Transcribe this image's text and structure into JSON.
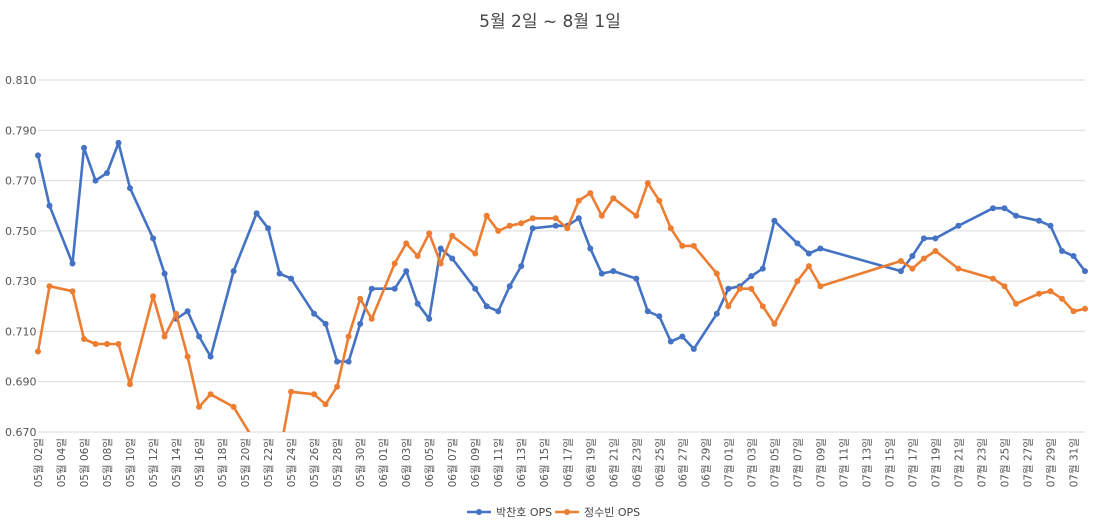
{
  "chart_data": {
    "type": "line",
    "title": "5월 2일 ~ 8월 1일",
    "xlabel": "",
    "ylabel": "",
    "ylim": [
      0.67,
      0.81
    ],
    "yticks": [
      "0.670",
      "0.690",
      "0.710",
      "0.730",
      "0.750",
      "0.770",
      "0.790",
      "0.810"
    ],
    "grid": true,
    "legend_position": "bottom",
    "x_tick_labels": [
      "05월 02일",
      "05월 04일",
      "05월 06일",
      "05월 08일",
      "05월 10일",
      "05월 12일",
      "05월 14일",
      "05월 16일",
      "05월 18일",
      "05월 20일",
      "05월 22일",
      "05월 24일",
      "05월 26일",
      "05월 28일",
      "05월 30일",
      "06월 01일",
      "06월 03일",
      "06월 05일",
      "06월 07일",
      "06월 09일",
      "06월 11일",
      "06월 13일",
      "06월 15일",
      "06월 17일",
      "06월 19일",
      "06월 21일",
      "06월 23일",
      "06월 25일",
      "06월 27일",
      "06월 29일",
      "07월 01일",
      "07월 03일",
      "07월 05일",
      "07월 07일",
      "07월 09일",
      "07월 11일",
      "07월 13일",
      "07월 15일",
      "07월 17일",
      "07월 19일",
      "07월 21일",
      "07월 23일",
      "07월 25일",
      "07월 27일",
      "07월 29일",
      "07월 31일"
    ],
    "series": [
      {
        "name": "박찬호 OPS",
        "color": "#4472C4",
        "points": [
          [
            0,
            0.78
          ],
          [
            1,
            0.76
          ],
          [
            3,
            0.737
          ],
          [
            4,
            0.783
          ],
          [
            5,
            0.77
          ],
          [
            6,
            0.773
          ],
          [
            7,
            0.785
          ],
          [
            8,
            0.767
          ],
          [
            10,
            0.747
          ],
          [
            11,
            0.733
          ],
          [
            12,
            0.715
          ],
          [
            13,
            0.718
          ],
          [
            14,
            0.708
          ],
          [
            15,
            0.7
          ],
          [
            17,
            0.734
          ],
          [
            19,
            0.757
          ],
          [
            20,
            0.751
          ],
          [
            21,
            0.733
          ],
          [
            22,
            0.731
          ],
          [
            24,
            0.717
          ],
          [
            25,
            0.713
          ],
          [
            26,
            0.698
          ],
          [
            27,
            0.698
          ],
          [
            28,
            0.713
          ],
          [
            29,
            0.727
          ],
          [
            31,
            0.727
          ],
          [
            32,
            0.734
          ],
          [
            33,
            0.721
          ],
          [
            34,
            0.715
          ],
          [
            35,
            0.743
          ],
          [
            36,
            0.739
          ],
          [
            38,
            0.727
          ],
          [
            39,
            0.72
          ],
          [
            40,
            0.718
          ],
          [
            41,
            0.728
          ],
          [
            42,
            0.736
          ],
          [
            43,
            0.751
          ],
          [
            45,
            0.752
          ],
          [
            46,
            0.752
          ],
          [
            47,
            0.755
          ],
          [
            48,
            0.743
          ],
          [
            49,
            0.733
          ],
          [
            50,
            0.734
          ],
          [
            52,
            0.731
          ],
          [
            53,
            0.718
          ],
          [
            54,
            0.716
          ],
          [
            55,
            0.706
          ],
          [
            56,
            0.708
          ],
          [
            57,
            0.703
          ],
          [
            59,
            0.717
          ],
          [
            60,
            0.727
          ],
          [
            61,
            0.728
          ],
          [
            62,
            0.732
          ],
          [
            63,
            0.735
          ],
          [
            64,
            0.754
          ],
          [
            66,
            0.745
          ],
          [
            67,
            0.741
          ],
          [
            68,
            0.743
          ],
          [
            75,
            0.734
          ],
          [
            76,
            0.74
          ],
          [
            77,
            0.747
          ],
          [
            78,
            0.747
          ],
          [
            80,
            0.752
          ],
          [
            83,
            0.759
          ],
          [
            84,
            0.759
          ],
          [
            85,
            0.756
          ],
          [
            87,
            0.754
          ],
          [
            88,
            0.752
          ],
          [
            89,
            0.742
          ],
          [
            90,
            0.74
          ],
          [
            91,
            0.734
          ]
        ]
      },
      {
        "name": "정수빈 OPS",
        "color": "#ED7D31",
        "points": [
          [
            0,
            0.702
          ],
          [
            1,
            0.728
          ],
          [
            3,
            0.726
          ],
          [
            4,
            0.707
          ],
          [
            5,
            0.705
          ],
          [
            6,
            0.705
          ],
          [
            7,
            0.705
          ],
          [
            8,
            0.689
          ],
          [
            10,
            0.724
          ],
          [
            11,
            0.708
          ],
          [
            12,
            0.717
          ],
          [
            13,
            0.7
          ],
          [
            14,
            0.68
          ],
          [
            15,
            0.685
          ],
          [
            17,
            0.68
          ],
          [
            19,
            0.665
          ],
          [
            20,
            0.664
          ],
          [
            21,
            0.661
          ],
          [
            22,
            0.686
          ],
          [
            24,
            0.685
          ],
          [
            25,
            0.681
          ],
          [
            26,
            0.688
          ],
          [
            27,
            0.708
          ],
          [
            28,
            0.723
          ],
          [
            29,
            0.715
          ],
          [
            31,
            0.737
          ],
          [
            32,
            0.745
          ],
          [
            33,
            0.74
          ],
          [
            34,
            0.749
          ],
          [
            35,
            0.737
          ],
          [
            36,
            0.748
          ],
          [
            38,
            0.741
          ],
          [
            39,
            0.756
          ],
          [
            40,
            0.75
          ],
          [
            41,
            0.752
          ],
          [
            42,
            0.753
          ],
          [
            43,
            0.755
          ],
          [
            45,
            0.755
          ],
          [
            46,
            0.751
          ],
          [
            47,
            0.762
          ],
          [
            48,
            0.765
          ],
          [
            49,
            0.756
          ],
          [
            50,
            0.763
          ],
          [
            52,
            0.756
          ],
          [
            53,
            0.769
          ],
          [
            54,
            0.762
          ],
          [
            55,
            0.751
          ],
          [
            56,
            0.744
          ],
          [
            57,
            0.744
          ],
          [
            59,
            0.733
          ],
          [
            60,
            0.72
          ],
          [
            61,
            0.727
          ],
          [
            62,
            0.727
          ],
          [
            63,
            0.72
          ],
          [
            64,
            0.713
          ],
          [
            66,
            0.73
          ],
          [
            67,
            0.736
          ],
          [
            68,
            0.728
          ],
          [
            75,
            0.738
          ],
          [
            76,
            0.735
          ],
          [
            77,
            0.739
          ],
          [
            78,
            0.742
          ],
          [
            80,
            0.735
          ],
          [
            83,
            0.731
          ],
          [
            84,
            0.728
          ],
          [
            85,
            0.721
          ],
          [
            87,
            0.725
          ],
          [
            88,
            0.726
          ],
          [
            89,
            0.723
          ],
          [
            90,
            0.718
          ],
          [
            91,
            0.719
          ]
        ]
      }
    ]
  }
}
